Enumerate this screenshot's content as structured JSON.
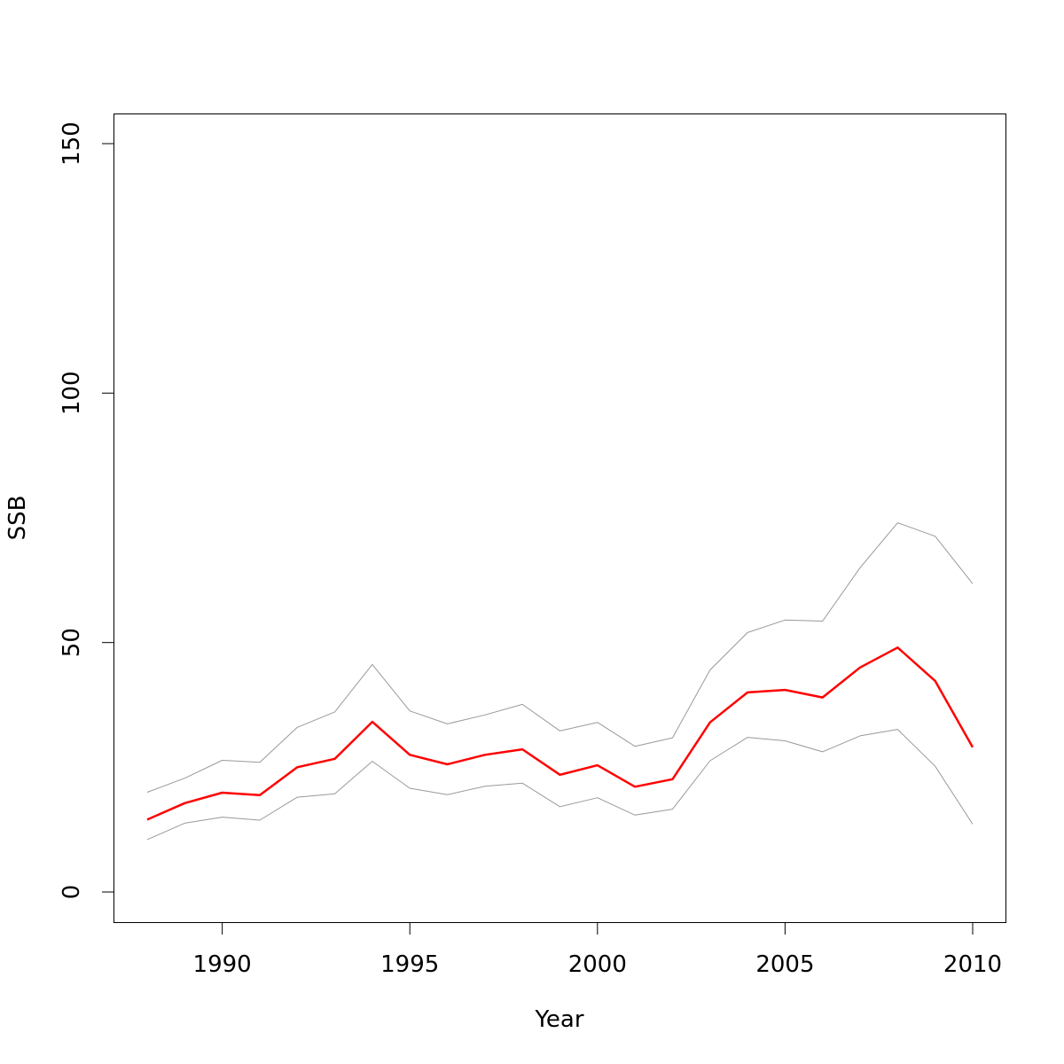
{
  "chart_data": {
    "type": "line",
    "title": "",
    "xlabel": "Year",
    "ylabel": "SSB",
    "xlim": [
      1988,
      2010
    ],
    "ylim": [
      0,
      150
    ],
    "xticks": [
      1990,
      1995,
      2000,
      2005,
      2010
    ],
    "yticks": [
      0,
      50,
      100,
      150
    ],
    "grid": false,
    "x": [
      1988,
      1989,
      1990,
      1991,
      1992,
      1993,
      1994,
      1995,
      1996,
      1997,
      1998,
      1999,
      2000,
      2001,
      2002,
      2003,
      2004,
      2005,
      2006,
      2007,
      2008,
      2009,
      2010
    ],
    "series": [
      {
        "color": "#ff0000",
        "values": [
          14.5,
          17.8,
          19.9,
          19.4,
          25.0,
          26.7,
          34.1,
          27.5,
          25.6,
          27.5,
          28.6,
          23.5,
          25.4,
          21.1,
          22.6,
          34.0,
          40.0,
          40.5,
          39.0,
          45.0,
          49.0,
          42.3,
          29.0
        ]
      },
      {
        "color": "#999999",
        "values": [
          20.0,
          22.8,
          26.4,
          26.0,
          33.0,
          36.1,
          45.6,
          36.3,
          33.7,
          35.5,
          37.6,
          32.3,
          34.0,
          29.2,
          30.9,
          44.5,
          52.0,
          54.5,
          54.3,
          65.0,
          74.0,
          71.3,
          61.8
        ]
      },
      {
        "color": "#999999",
        "values": [
          10.5,
          13.8,
          15.0,
          14.4,
          19.0,
          19.7,
          26.2,
          20.8,
          19.5,
          21.2,
          21.8,
          17.1,
          18.9,
          15.4,
          16.6,
          26.3,
          31.0,
          30.3,
          28.1,
          31.3,
          32.6,
          25.2,
          13.6
        ]
      }
    ]
  }
}
